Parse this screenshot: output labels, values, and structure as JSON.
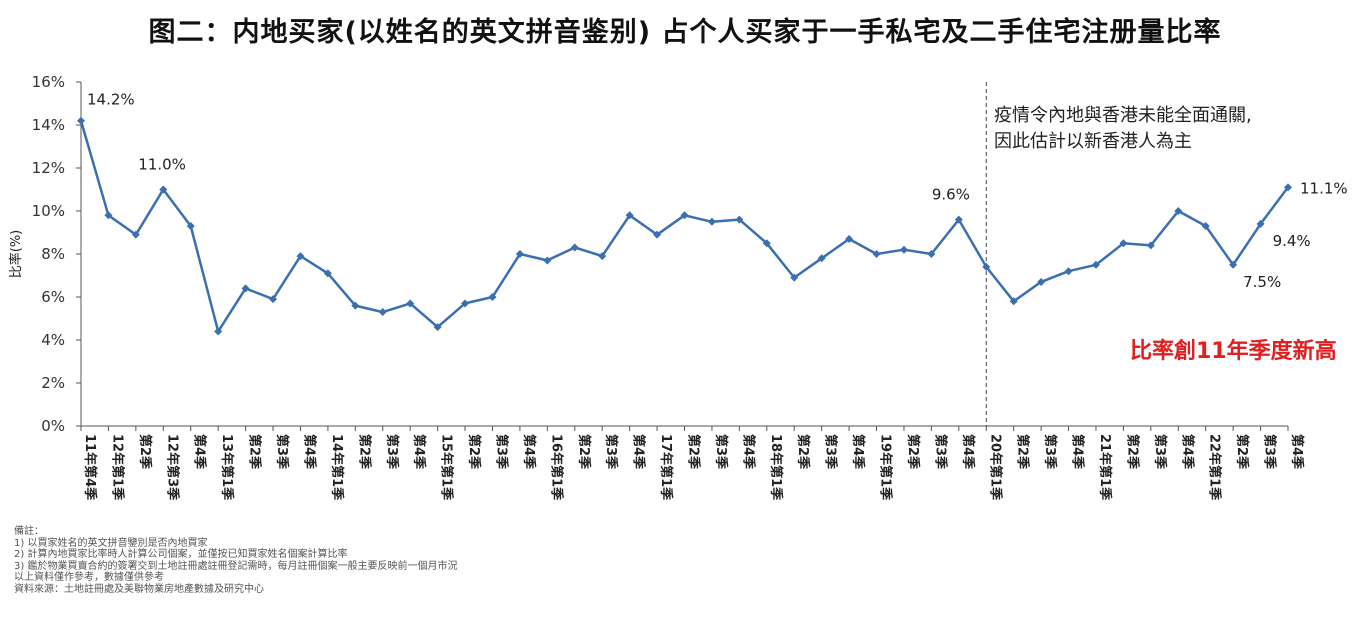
{
  "chart_data": {
    "type": "line",
    "title": "图二：内地买家(以姓名的英文拼音鉴别) 占个人买家于一手私宅及二手住宅注册量比率",
    "ylabel": "比率(%)",
    "xlabel": "",
    "ylim": [
      0,
      16
    ],
    "yticks": [
      "0%",
      "2%",
      "4%",
      "6%",
      "8%",
      "10%",
      "12%",
      "14%",
      "16%"
    ],
    "grid": false,
    "legend": "none",
    "categories": [
      "11年第4季",
      "12年第1季",
      "第2季",
      "12年第3季",
      "第4季",
      "13年第1季",
      "第2季",
      "第3季",
      "第4季",
      "14年第1季",
      "第2季",
      "第3季",
      "第4季",
      "15年第1季",
      "第2季",
      "第3季",
      "第4季",
      "16年第1季",
      "第2季",
      "第3季",
      "第4季",
      "17年第1季",
      "第2季",
      "第3季",
      "第4季",
      "18年第1季",
      "第2季",
      "第3季",
      "第4季",
      "19年第1季",
      "第2季",
      "第3季",
      "第4季",
      "20年第1季",
      "第2季",
      "第3季",
      "第4季",
      "21年第1季",
      "第2季",
      "第3季",
      "第4季",
      "22年第1季",
      "第2季",
      "第3季",
      "第4季"
    ],
    "values": [
      14.2,
      9.8,
      8.9,
      11.0,
      9.3,
      4.4,
      6.4,
      5.9,
      7.9,
      7.1,
      5.6,
      5.3,
      5.7,
      4.6,
      5.7,
      6.0,
      8.0,
      7.7,
      8.3,
      7.9,
      9.8,
      8.9,
      9.8,
      9.5,
      9.6,
      8.5,
      6.9,
      7.8,
      8.7,
      8.0,
      8.2,
      8.0,
      9.6,
      7.4,
      5.8,
      6.7,
      7.2,
      7.5,
      8.5,
      8.4,
      10.0,
      9.3,
      7.5,
      9.4,
      11.1
    ],
    "data_labels": [
      {
        "index": 0,
        "text": "14.2%"
      },
      {
        "index": 3,
        "text": "11.0%"
      },
      {
        "index": 32,
        "text": "9.6%"
      },
      {
        "index": 42,
        "text": "7.5%"
      },
      {
        "index": 43,
        "text": "9.4%"
      },
      {
        "index": 44,
        "text": "11.1%"
      }
    ],
    "vline_index": 33,
    "line_color": "#3a6fb0",
    "axis_color": "#555555"
  },
  "annotation": {
    "line1": "疫情令內地與香港未能全面通關,",
    "line2": "因此估計以新香港人為主"
  },
  "highlight": {
    "text": "比率創11年季度新高",
    "color": "#e02020"
  },
  "notes": {
    "lines": [
      "備註：",
      "1) 以買家姓名的英文拼音鑒別是否內地買家",
      "2) 計算內地買家比率時人計算公司個案，並僅按已知買家姓名個案計算比率",
      "3) 鑑於物業買賣合約的簽署交到土地註冊處註冊登記需時，每月註冊個案一般主要反映前一個月市況",
      "以上資料僅作參考，數據僅供參考",
      "資料來源：土地註冊處及美聯物業房地產數據及研究中心"
    ]
  }
}
